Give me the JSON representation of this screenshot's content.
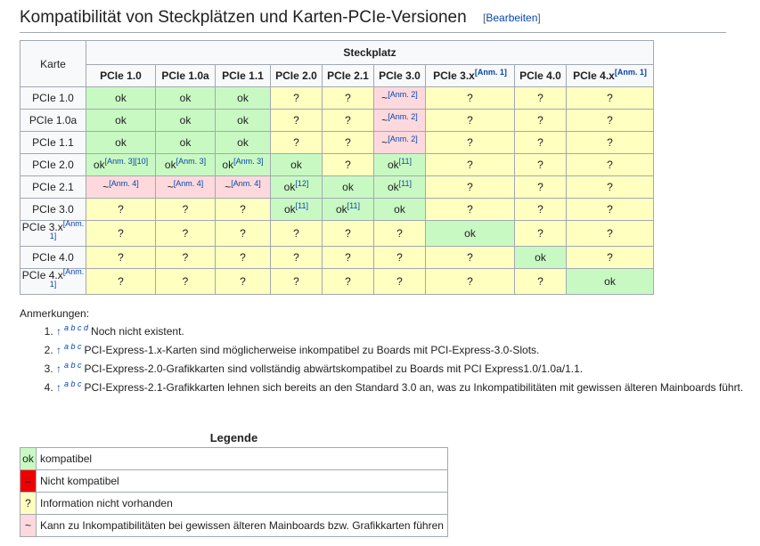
{
  "header": {
    "title": "Kompatibilität von Steckplätzen und Karten-PCIe-Versionen",
    "edit_open": "[",
    "edit_label": "Bearbeiten",
    "edit_close": "]"
  },
  "table": {
    "karte_label": "Karte",
    "steckplatz_label": "Steckplatz",
    "columns": [
      {
        "label": "PCIe 1.0",
        "sup": ""
      },
      {
        "label": "PCIe 1.0a",
        "sup": ""
      },
      {
        "label": "PCIe 1.1",
        "sup": ""
      },
      {
        "label": "PCIe 2.0",
        "sup": ""
      },
      {
        "label": "PCIe 2.1",
        "sup": ""
      },
      {
        "label": "PCIe 3.0",
        "sup": ""
      },
      {
        "label": "PCIe 3.x",
        "sup": "[Anm. 1]"
      },
      {
        "label": "PCIe 4.0",
        "sup": ""
      },
      {
        "label": "PCIe 4.x",
        "sup": "[Anm. 1]"
      }
    ],
    "rows": [
      {
        "label": "PCIe 1.0",
        "sup": "",
        "cells": [
          {
            "t": "ok",
            "s": "",
            "c": "ok"
          },
          {
            "t": "ok",
            "s": "",
            "c": "ok"
          },
          {
            "t": "ok",
            "s": "",
            "c": "ok"
          },
          {
            "t": "?",
            "s": "",
            "c": "q"
          },
          {
            "t": "?",
            "s": "",
            "c": "q"
          },
          {
            "t": "~",
            "s": "[Anm. 2]",
            "c": "t"
          },
          {
            "t": "?",
            "s": "",
            "c": "q"
          },
          {
            "t": "?",
            "s": "",
            "c": "q"
          },
          {
            "t": "?",
            "s": "",
            "c": "q"
          }
        ]
      },
      {
        "label": "PCIe 1.0a",
        "sup": "",
        "cells": [
          {
            "t": "ok",
            "s": "",
            "c": "ok"
          },
          {
            "t": "ok",
            "s": "",
            "c": "ok"
          },
          {
            "t": "ok",
            "s": "",
            "c": "ok"
          },
          {
            "t": "?",
            "s": "",
            "c": "q"
          },
          {
            "t": "?",
            "s": "",
            "c": "q"
          },
          {
            "t": "~",
            "s": "[Anm. 2]",
            "c": "t"
          },
          {
            "t": "?",
            "s": "",
            "c": "q"
          },
          {
            "t": "?",
            "s": "",
            "c": "q"
          },
          {
            "t": "?",
            "s": "",
            "c": "q"
          }
        ]
      },
      {
        "label": "PCIe 1.1",
        "sup": "",
        "cells": [
          {
            "t": "ok",
            "s": "",
            "c": "ok"
          },
          {
            "t": "ok",
            "s": "",
            "c": "ok"
          },
          {
            "t": "ok",
            "s": "",
            "c": "ok"
          },
          {
            "t": "?",
            "s": "",
            "c": "q"
          },
          {
            "t": "?",
            "s": "",
            "c": "q"
          },
          {
            "t": "~",
            "s": "[Anm. 2]",
            "c": "t"
          },
          {
            "t": "?",
            "s": "",
            "c": "q"
          },
          {
            "t": "?",
            "s": "",
            "c": "q"
          },
          {
            "t": "?",
            "s": "",
            "c": "q"
          }
        ]
      },
      {
        "label": "PCIe 2.0",
        "sup": "",
        "cells": [
          {
            "t": "ok",
            "s": "[Anm. 3][10]",
            "c": "ok"
          },
          {
            "t": "ok",
            "s": "[Anm. 3]",
            "c": "ok"
          },
          {
            "t": "ok",
            "s": "[Anm. 3]",
            "c": "ok"
          },
          {
            "t": "ok",
            "s": "",
            "c": "ok"
          },
          {
            "t": "?",
            "s": "",
            "c": "q"
          },
          {
            "t": "ok",
            "s": "[11]",
            "c": "ok"
          },
          {
            "t": "?",
            "s": "",
            "c": "q"
          },
          {
            "t": "?",
            "s": "",
            "c": "q"
          },
          {
            "t": "?",
            "s": "",
            "c": "q"
          }
        ]
      },
      {
        "label": "PCIe 2.1",
        "sup": "",
        "cells": [
          {
            "t": "~",
            "s": "[Anm. 4]",
            "c": "t"
          },
          {
            "t": "~",
            "s": "[Anm. 4]",
            "c": "t"
          },
          {
            "t": "~",
            "s": "[Anm. 4]",
            "c": "t"
          },
          {
            "t": "ok",
            "s": "[12]",
            "c": "ok"
          },
          {
            "t": "ok",
            "s": "",
            "c": "ok"
          },
          {
            "t": "ok",
            "s": "[11]",
            "c": "ok"
          },
          {
            "t": "?",
            "s": "",
            "c": "q"
          },
          {
            "t": "?",
            "s": "",
            "c": "q"
          },
          {
            "t": "?",
            "s": "",
            "c": "q"
          }
        ]
      },
      {
        "label": "PCIe 3.0",
        "sup": "",
        "cells": [
          {
            "t": "?",
            "s": "",
            "c": "q"
          },
          {
            "t": "?",
            "s": "",
            "c": "q"
          },
          {
            "t": "?",
            "s": "",
            "c": "q"
          },
          {
            "t": "ok",
            "s": "[11]",
            "c": "ok"
          },
          {
            "t": "ok",
            "s": "[11]",
            "c": "ok"
          },
          {
            "t": "ok",
            "s": "",
            "c": "ok"
          },
          {
            "t": "?",
            "s": "",
            "c": "q"
          },
          {
            "t": "?",
            "s": "",
            "c": "q"
          },
          {
            "t": "?",
            "s": "",
            "c": "q"
          }
        ]
      },
      {
        "label": "PCIe 3.x",
        "sup": "[Anm. 1]",
        "cells": [
          {
            "t": "?",
            "s": "",
            "c": "q"
          },
          {
            "t": "?",
            "s": "",
            "c": "q"
          },
          {
            "t": "?",
            "s": "",
            "c": "q"
          },
          {
            "t": "?",
            "s": "",
            "c": "q"
          },
          {
            "t": "?",
            "s": "",
            "c": "q"
          },
          {
            "t": "?",
            "s": "",
            "c": "q"
          },
          {
            "t": "ok",
            "s": "",
            "c": "ok"
          },
          {
            "t": "?",
            "s": "",
            "c": "q"
          },
          {
            "t": "?",
            "s": "",
            "c": "q"
          }
        ]
      },
      {
        "label": "PCIe 4.0",
        "sup": "",
        "cells": [
          {
            "t": "?",
            "s": "",
            "c": "q"
          },
          {
            "t": "?",
            "s": "",
            "c": "q"
          },
          {
            "t": "?",
            "s": "",
            "c": "q"
          },
          {
            "t": "?",
            "s": "",
            "c": "q"
          },
          {
            "t": "?",
            "s": "",
            "c": "q"
          },
          {
            "t": "?",
            "s": "",
            "c": "q"
          },
          {
            "t": "?",
            "s": "",
            "c": "q"
          },
          {
            "t": "ok",
            "s": "",
            "c": "ok"
          },
          {
            "t": "?",
            "s": "",
            "c": "q"
          }
        ]
      },
      {
        "label": "PCIe 4.x",
        "sup": "[Anm. 1]",
        "cells": [
          {
            "t": "?",
            "s": "",
            "c": "q"
          },
          {
            "t": "?",
            "s": "",
            "c": "q"
          },
          {
            "t": "?",
            "s": "",
            "c": "q"
          },
          {
            "t": "?",
            "s": "",
            "c": "q"
          },
          {
            "t": "?",
            "s": "",
            "c": "q"
          },
          {
            "t": "?",
            "s": "",
            "c": "q"
          },
          {
            "t": "?",
            "s": "",
            "c": "q"
          },
          {
            "t": "?",
            "s": "",
            "c": "q"
          },
          {
            "t": "ok",
            "s": "",
            "c": "ok"
          }
        ]
      }
    ]
  },
  "notes": {
    "label": "Anmerkungen:",
    "items": [
      {
        "letters": "a b c d",
        "text": "Noch nicht existent."
      },
      {
        "letters": "a b c",
        "text": "PCI-Express-1.x-Karten sind möglicherweise inkompatibel zu Boards mit PCI-Express-3.0-Slots."
      },
      {
        "letters": "a b c",
        "text": "PCI-Express-2.0-Grafikkarten sind vollständig abwärtskompatibel zu Boards mit PCI Express1.0/1.0a/1.1."
      },
      {
        "letters": "a b c",
        "text": "PCI-Express-2.1-Grafikkarten lehnen sich bereits an den Standard 3.0 an, was zu Inkompatibilitäten mit gewissen älteren Mainboards führt."
      }
    ],
    "arrow": "↑"
  },
  "legend": {
    "caption": "Legende",
    "items": [
      {
        "symbol": "ok",
        "text": "kompatibel",
        "cls": "leg-ok"
      },
      {
        "symbol": "–",
        "text": "Nicht kompatibel",
        "cls": "leg-no"
      },
      {
        "symbol": "?",
        "text": "Information nicht vorhanden",
        "cls": "leg-q"
      },
      {
        "symbol": "~",
        "text": "Kann zu Inkompatibilitäten bei gewissen älteren Mainboards bzw. Grafikkarten führen",
        "cls": "leg-t"
      }
    ]
  },
  "colors": {
    "ok": "#c9f9c3",
    "unknown": "#ffffc0",
    "partial": "#fdd9dd",
    "incompatible": "#ee0000",
    "link": "#0645ad"
  }
}
